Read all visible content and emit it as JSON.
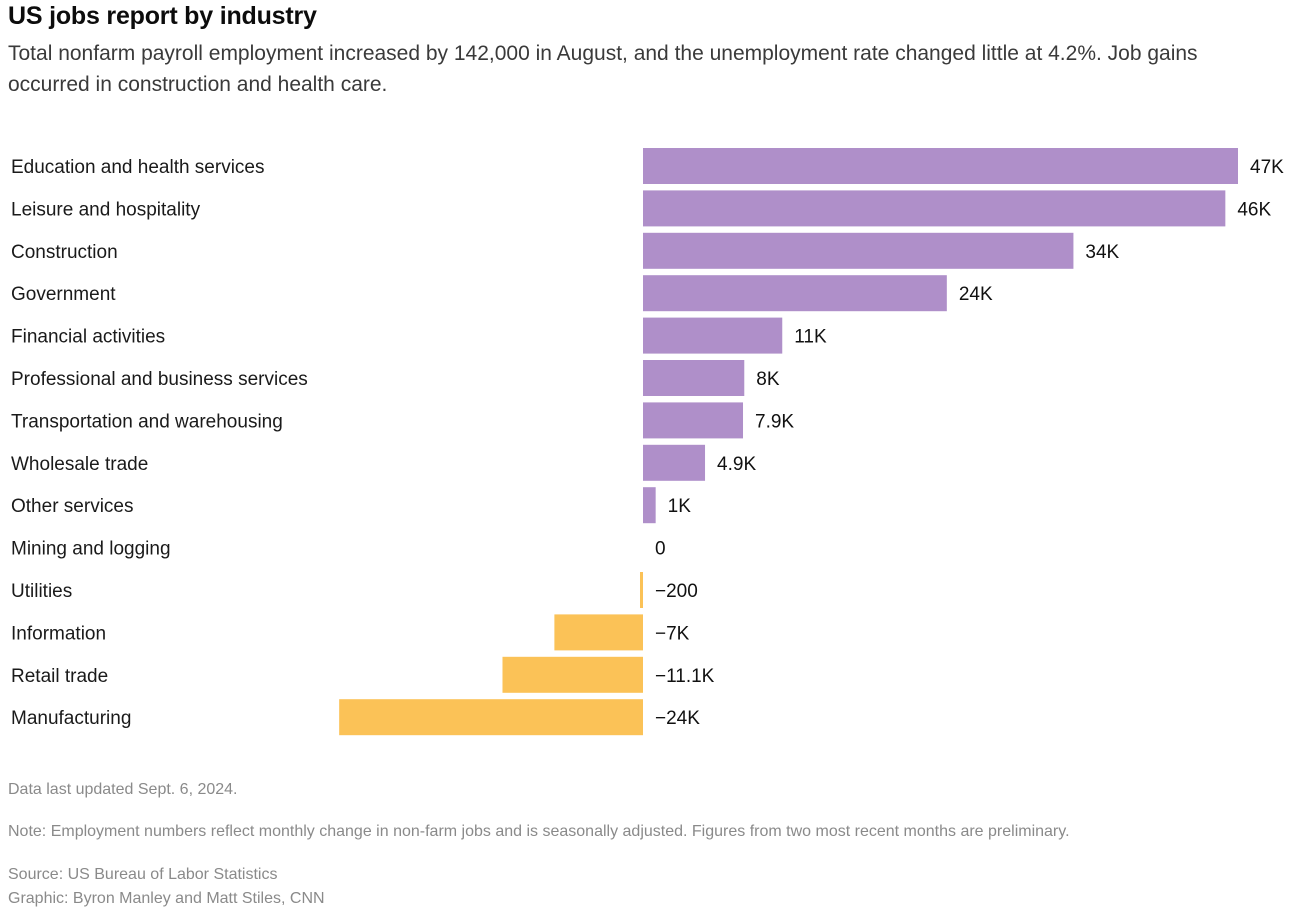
{
  "header": {
    "title": "US jobs report by industry",
    "subtitle": "Total nonfarm payroll employment increased by 142,000 in August, and the unemployment rate changed little at 4.2%. Job gains occurred in construction and health care."
  },
  "chart_data": {
    "type": "bar",
    "orientation": "horizontal",
    "categories": [
      "Education and health services",
      "Leisure and hospitality",
      "Construction",
      "Government",
      "Financial activities",
      "Professional and business services",
      "Transportation and warehousing",
      "Wholesale trade",
      "Other services",
      "Mining and logging",
      "Utilities",
      "Information",
      "Retail trade",
      "Manufacturing"
    ],
    "values": [
      47000,
      46000,
      34000,
      24000,
      11000,
      8000,
      7900,
      4900,
      1000,
      0,
      -200,
      -7000,
      -11100,
      -24000
    ],
    "labels": [
      "47K",
      "46K",
      "34K",
      "24K",
      "11K",
      "8K",
      "7.9K",
      "4.9K",
      "1K",
      "0",
      "−200",
      "−7K",
      "−11.1K",
      "−24K"
    ],
    "colors": {
      "positive": "#af8fc9",
      "negative": "#fbc257"
    },
    "grid": false,
    "legend": "none"
  },
  "footer": {
    "updated": "Data last updated Sept. 6, 2024.",
    "note": "Note: Employment numbers reflect monthly change in non-farm jobs and is seasonally adjusted. Figures from two most recent months are preliminary.",
    "source": "Source: US Bureau of Labor Statistics",
    "graphic": "Graphic: Byron Manley and Matt Stiles, CNN"
  }
}
